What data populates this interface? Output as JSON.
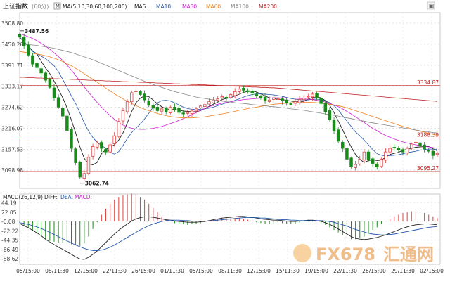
{
  "header": {
    "title": "上证指数",
    "period": "(60分)",
    "ma_params": "MA(5,10,30,60,100,200)",
    "ma_labels": [
      {
        "text": "MA5:",
        "color": "#222222"
      },
      {
        "text": "MA10:",
        "color": "#2255aa"
      },
      {
        "text": "MA30:",
        "color": "#d020d0"
      },
      {
        "text": "MA60:",
        "color": "#f08020"
      },
      {
        "text": "MA100:",
        "color": "#888888"
      },
      {
        "text": "MA200:",
        "color": "#c02020"
      }
    ]
  },
  "macd": {
    "label": "MACD(26,12,9)",
    "diff_label": "DIFF:",
    "dea_label": "DEA:",
    "macd_label": "MACD:"
  },
  "watermark": {
    "brand": "FX678",
    "cn": "汇通网"
  },
  "colors": {
    "up": "#e04040",
    "down": "#1a8a1a",
    "ma5": "#222222",
    "ma10": "#2255aa",
    "ma30": "#d020d0",
    "ma60": "#f08020",
    "ma100": "#888888",
    "ma200": "#c02020",
    "hline": "#c02020",
    "diff": "#222222",
    "dea": "#2255aa"
  },
  "chart_data": {
    "type": "candlestick",
    "y_ticks": [
      3508.8,
      3450.26,
      3391.71,
      3333.17,
      3274.62,
      3216.07,
      3157.53,
      3098.98
    ],
    "ylim": [
      3070,
      3508.8
    ],
    "x_tick_labels": [
      "05/15:00",
      "08/11:30",
      "12/15:00",
      "22/11:30",
      "26/15:00",
      "01/11:30",
      "05/15:00",
      "08/11:30",
      "12/15:00",
      "15/11:30",
      "19/15:00",
      "22/11:30",
      "26/15:00",
      "29/11:30",
      "02/15:00"
    ],
    "annotations": [
      {
        "label": "3487.56",
        "value": 3487.56
      },
      {
        "label": "3062.74",
        "value": 3062.74
      }
    ],
    "horizontal_lines": [
      {
        "label": "3334.87",
        "value": 3334.87
      },
      {
        "label": "3188.39",
        "value": 3188.39
      },
      {
        "label": "3095.27",
        "value": 3095.27
      }
    ],
    "closes": [
      3470,
      3445,
      3420,
      3395,
      3385,
      3370,
      3350,
      3330,
      3300,
      3275,
      3250,
      3210,
      3160,
      3120,
      3080,
      3090,
      3135,
      3165,
      3175,
      3160,
      3150,
      3170,
      3195,
      3235,
      3265,
      3290,
      3315,
      3320,
      3310,
      3295,
      3280,
      3272,
      3265,
      3270,
      3262,
      3275,
      3268,
      3260,
      3256,
      3260,
      3264,
      3270,
      3278,
      3282,
      3290,
      3295,
      3298,
      3304,
      3300,
      3310,
      3318,
      3325,
      3322,
      3318,
      3314,
      3306,
      3300,
      3292,
      3295,
      3301,
      3298,
      3292,
      3286,
      3284,
      3290,
      3296,
      3300,
      3305,
      3311,
      3302,
      3285,
      3262,
      3240,
      3210,
      3180,
      3160,
      3130,
      3108,
      3115,
      3130,
      3150,
      3128,
      3118,
      3108,
      3130,
      3150,
      3160,
      3162,
      3155,
      3150,
      3160,
      3172,
      3177,
      3168,
      3158,
      3152,
      3140,
      3146
    ],
    "ma_series": [
      {
        "name": "MA5",
        "values": [
          3470,
          3457,
          3445,
          3432,
          3423,
          3403,
          3384,
          3368,
          3347,
          3325,
          3301,
          3273,
          3239,
          3203,
          3164,
          3132,
          3117,
          3114,
          3121,
          3145,
          3157,
          3164,
          3170,
          3183,
          3203,
          3231,
          3262,
          3287,
          3300,
          3306,
          3304,
          3295,
          3284,
          3276,
          3270,
          3269,
          3268,
          3267,
          3264,
          3263,
          3262,
          3262,
          3265,
          3271,
          3277,
          3283,
          3289,
          3296,
          3299,
          3301,
          3306,
          3311,
          3316,
          3319,
          3320,
          3317,
          3312,
          3306,
          3301,
          3299,
          3297,
          3296,
          3294,
          3292,
          3290,
          3290,
          3291,
          3297,
          3302,
          3303,
          3301,
          3293,
          3280,
          3260,
          3236,
          3212,
          3186,
          3164,
          3143,
          3129,
          3121,
          3126,
          3128,
          3126,
          3127,
          3135,
          3143,
          3146,
          3149,
          3155,
          3157,
          3160,
          3163,
          3164,
          3165,
          3165,
          3159,
          3153
        ]
      },
      {
        "name": "MA10",
        "values": [
          3470,
          3457,
          3445,
          3430,
          3423,
          3417,
          3410,
          3400,
          3390,
          3374,
          3352,
          3330,
          3306,
          3285,
          3259,
          3231,
          3208,
          3190,
          3177,
          3168,
          3160,
          3149,
          3144,
          3151,
          3168,
          3188,
          3204,
          3216,
          3228,
          3242,
          3258,
          3275,
          3287,
          3293,
          3294,
          3292,
          3287,
          3281,
          3275,
          3271,
          3269,
          3268,
          3269,
          3270,
          3272,
          3275,
          3279,
          3283,
          3287,
          3290,
          3294,
          3298,
          3303,
          3307,
          3310,
          3312,
          3312,
          3311,
          3310,
          3309,
          3307,
          3305,
          3302,
          3299,
          3297,
          3296,
          3295,
          3295,
          3297,
          3297,
          3296,
          3293,
          3287,
          3279,
          3267,
          3251,
          3236,
          3221,
          3206,
          3195,
          3183,
          3170,
          3157,
          3145,
          3141,
          3139,
          3140,
          3141,
          3142,
          3145,
          3148,
          3150,
          3152,
          3155,
          3156,
          3158,
          3158,
          3157
        ]
      },
      {
        "name": "MA30",
        "values": [
          3480,
          3476,
          3471,
          3466,
          3460,
          3453,
          3445,
          3436,
          3426,
          3416,
          3405,
          3392,
          3378,
          3363,
          3347,
          3331,
          3316,
          3302,
          3288,
          3275,
          3263,
          3251,
          3241,
          3232,
          3225,
          3220,
          3216,
          3214,
          3213,
          3213,
          3214,
          3216,
          3218,
          3221,
          3225,
          3229,
          3233,
          3238,
          3243,
          3248,
          3254,
          3260,
          3266,
          3271,
          3276,
          3280,
          3283,
          3286,
          3288,
          3290,
          3292,
          3294,
          3296,
          3297,
          3298,
          3299,
          3300,
          3300,
          3300,
          3301,
          3301,
          3301,
          3301,
          3300,
          3300,
          3299,
          3298,
          3297,
          3296,
          3294,
          3292,
          3289,
          3285,
          3281,
          3276,
          3270,
          3263,
          3256,
          3248,
          3240,
          3232,
          3224,
          3216,
          3209,
          3202,
          3196,
          3191,
          3186,
          3182,
          3178,
          3175,
          3172,
          3170,
          3168,
          3166,
          3164,
          3162,
          3160
        ]
      },
      {
        "name": "MA60",
        "values": [
          3430,
          3428,
          3427,
          3425,
          3423,
          3421,
          3418,
          3415,
          3411,
          3407,
          3402,
          3396,
          3390,
          3383,
          3376,
          3368,
          3360,
          3352,
          3344,
          3336,
          3328,
          3320,
          3312,
          3305,
          3298,
          3291,
          3285,
          3279,
          3274,
          3269,
          3265,
          3261,
          3257,
          3254,
          3251,
          3249,
          3247,
          3246,
          3245,
          3245,
          3245,
          3246,
          3247,
          3248,
          3250,
          3252,
          3254,
          3256,
          3258,
          3261,
          3263,
          3266,
          3268,
          3271,
          3273,
          3275,
          3277,
          3279,
          3281,
          3283,
          3284,
          3285,
          3286,
          3287,
          3288,
          3288,
          3288,
          3288,
          3288,
          3287,
          3286,
          3285,
          3283,
          3281,
          3279,
          3276,
          3273,
          3269,
          3265,
          3261,
          3257,
          3253,
          3249,
          3245,
          3241,
          3237,
          3233,
          3229,
          3225,
          3221,
          3218,
          3214,
          3211,
          3208,
          3205,
          3202,
          3199,
          3196
        ]
      },
      {
        "name": "MA100",
        "values": [
          3450,
          3450,
          3449,
          3448,
          3447,
          3445,
          3443,
          3441,
          3439,
          3436,
          3433,
          3430,
          3427,
          3423,
          3419,
          3415,
          3411,
          3407,
          3402,
          3397,
          3392,
          3387,
          3382,
          3377,
          3372,
          3367,
          3362,
          3357,
          3352,
          3347,
          3343,
          3338,
          3334,
          3330,
          3326,
          3322,
          3318,
          3315,
          3312,
          3309,
          3306,
          3303,
          3301,
          3299,
          3297,
          3295,
          3293,
          3292,
          3290,
          3289,
          3287,
          3286,
          3285,
          3284,
          3282,
          3281,
          3280,
          3279,
          3277,
          3276,
          3275,
          3273,
          3272,
          3270,
          3269,
          3267,
          3266,
          3264,
          3262,
          3260,
          3258,
          3256,
          3254,
          3252,
          3250,
          3247,
          3245,
          3243,
          3240,
          3238,
          3236,
          3233,
          3231,
          3229,
          3227,
          3225,
          3223,
          3221,
          3219,
          3217,
          3215,
          3213,
          3211,
          3209,
          3207,
          3206,
          3204,
          3203
        ]
      },
      {
        "name": "MA200",
        "values": [
          3358,
          3358,
          3357,
          3357,
          3356,
          3356,
          3355,
          3355,
          3354,
          3354,
          3353,
          3353,
          3352,
          3352,
          3351,
          3351,
          3350,
          3350,
          3349,
          3349,
          3348,
          3348,
          3347,
          3347,
          3346,
          3346,
          3345,
          3345,
          3344,
          3344,
          3343,
          3343,
          3342,
          3342,
          3341,
          3341,
          3340,
          3340,
          3339,
          3339,
          3338,
          3338,
          3337,
          3337,
          3336,
          3336,
          3335,
          3335,
          3334,
          3334,
          3333,
          3333,
          3332,
          3332,
          3331,
          3331,
          3330,
          3330,
          3329,
          3329,
          3328,
          3327,
          3326,
          3325,
          3324,
          3323,
          3322,
          3321,
          3320,
          3319,
          3318,
          3317,
          3316,
          3315,
          3314,
          3313,
          3312,
          3311,
          3310,
          3309,
          3308,
          3307,
          3306,
          3305,
          3304,
          3303,
          3302,
          3301,
          3300,
          3299,
          3298,
          3297,
          3296,
          3295,
          3294,
          3293,
          3292,
          3291
        ]
      }
    ],
    "macd_panel": {
      "y_ticks": [
        44.19,
        22.05,
        -0.08,
        -22.22,
        -44.35,
        -66.49,
        -88.62
      ],
      "ylim": [
        -95,
        50
      ],
      "diff": [
        -5,
        -10,
        -15,
        -21,
        -27,
        -34,
        -42,
        -49,
        -55,
        -61,
        -66,
        -72,
        -78,
        -84,
        -89,
        -90,
        -85,
        -78,
        -70,
        -60,
        -50,
        -40,
        -30,
        -21,
        -13,
        -6,
        1,
        6,
        9,
        11,
        11,
        10,
        8,
        6,
        4,
        3,
        1,
        0,
        -1,
        -2,
        -2,
        -2,
        -1,
        0,
        2,
        4,
        6,
        8,
        9,
        10,
        11,
        12,
        12,
        11,
        10,
        8,
        6,
        5,
        4,
        3,
        3,
        2,
        1,
        0,
        0,
        1,
        2,
        3,
        3,
        2,
        0,
        -3,
        -7,
        -12,
        -18,
        -24,
        -30,
        -36,
        -40,
        -42,
        -43,
        -42,
        -40,
        -38,
        -35,
        -32,
        -28,
        -24,
        -20,
        -16,
        -13,
        -10,
        -8,
        -7,
        -6,
        -6,
        -7,
        -8
      ],
      "dea": [
        -3,
        -5,
        -7,
        -10,
        -13,
        -17,
        -21,
        -26,
        -31,
        -36,
        -41,
        -46,
        -51,
        -56,
        -60,
        -64,
        -67,
        -69,
        -69,
        -68,
        -65,
        -61,
        -56,
        -50,
        -44,
        -38,
        -32,
        -26,
        -20,
        -15,
        -10,
        -6,
        -3,
        0,
        2,
        3,
        3,
        3,
        2,
        2,
        1,
        1,
        1,
        1,
        1,
        2,
        3,
        4,
        5,
        6,
        7,
        8,
        9,
        9,
        9,
        9,
        8,
        8,
        7,
        6,
        5,
        4,
        4,
        3,
        3,
        2,
        2,
        2,
        2,
        2,
        2,
        1,
        0,
        -2,
        -5,
        -8,
        -11,
        -15,
        -19,
        -22,
        -25,
        -28,
        -30,
        -31,
        -32,
        -32,
        -31,
        -30,
        -28,
        -26,
        -24,
        -22,
        -20,
        -18,
        -16,
        -14,
        -13,
        -12
      ],
      "macd": [
        -4,
        -10,
        -16,
        -22,
        -28,
        -34,
        -42,
        -46,
        -48,
        -50,
        -50,
        -52,
        -54,
        -56,
        -58,
        -52,
        -36,
        -18,
        -2,
        16,
        30,
        42,
        52,
        58,
        62,
        64,
        66,
        64,
        58,
        52,
        42,
        32,
        22,
        12,
        4,
        0,
        -4,
        -6,
        -6,
        -8,
        -6,
        -6,
        -4,
        -2,
        2,
        4,
        6,
        8,
        8,
        8,
        8,
        8,
        6,
        4,
        2,
        -2,
        -4,
        -6,
        -6,
        -6,
        -4,
        -4,
        -6,
        -6,
        -6,
        -2,
        0,
        2,
        2,
        0,
        -4,
        -8,
        -14,
        -20,
        -26,
        -32,
        -38,
        -42,
        -42,
        -40,
        -36,
        -28,
        -20,
        -14,
        -6,
        0,
        6,
        12,
        16,
        20,
        22,
        24,
        24,
        22,
        20,
        16,
        12,
        8
      ]
    }
  }
}
